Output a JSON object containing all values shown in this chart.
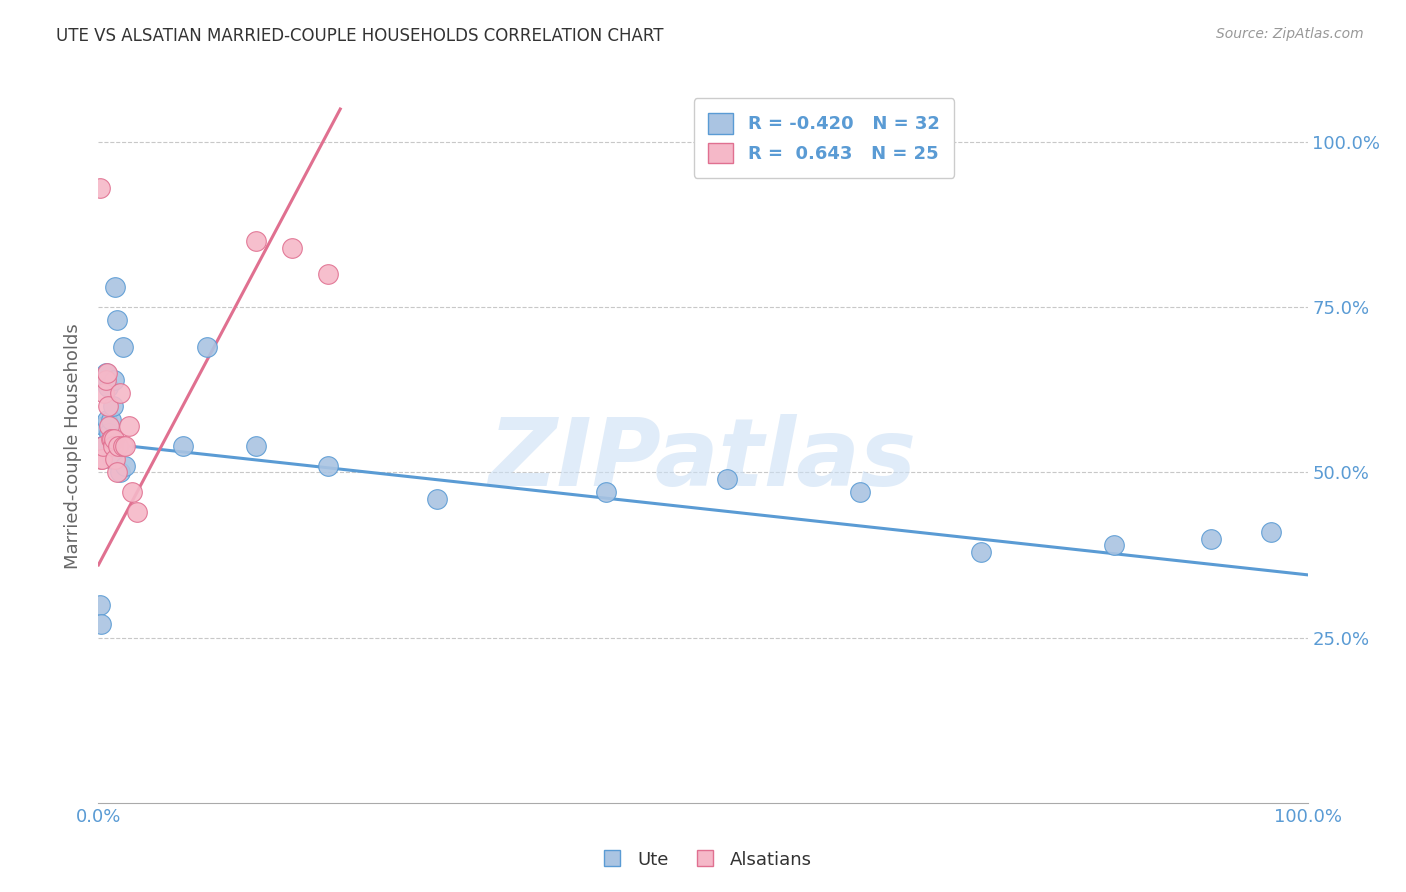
{
  "title": "UTE VS ALSATIAN MARRIED-COUPLE HOUSEHOLDS CORRELATION CHART",
  "source": "Source: ZipAtlas.com",
  "ylabel": "Married-couple Households",
  "watermark": "ZIPatlas",
  "ute_R": "-0.420",
  "ute_N": "32",
  "alsatian_R": "0.643",
  "alsatian_N": "25",
  "ute_color": "#aac4e2",
  "ute_line_color": "#5a9bd4",
  "alsatian_color": "#f5b8c8",
  "alsatian_line_color": "#e07090",
  "ute_x": [
    0.001,
    0.002,
    0.003,
    0.003,
    0.004,
    0.005,
    0.006,
    0.007,
    0.008,
    0.009,
    0.01,
    0.011,
    0.012,
    0.013,
    0.014,
    0.015,
    0.016,
    0.018,
    0.02,
    0.022,
    0.07,
    0.09,
    0.13,
    0.19,
    0.28,
    0.42,
    0.52,
    0.63,
    0.73,
    0.84,
    0.92,
    0.97
  ],
  "ute_y": [
    0.3,
    0.27,
    0.54,
    0.64,
    0.54,
    0.57,
    0.65,
    0.58,
    0.63,
    0.56,
    0.58,
    0.52,
    0.6,
    0.64,
    0.78,
    0.73,
    0.54,
    0.5,
    0.69,
    0.51,
    0.54,
    0.69,
    0.54,
    0.51,
    0.46,
    0.47,
    0.49,
    0.47,
    0.38,
    0.39,
    0.4,
    0.41
  ],
  "alsatian_x": [
    0.001,
    0.002,
    0.003,
    0.004,
    0.005,
    0.006,
    0.007,
    0.008,
    0.009,
    0.01,
    0.011,
    0.012,
    0.013,
    0.014,
    0.015,
    0.016,
    0.018,
    0.02,
    0.022,
    0.025,
    0.028,
    0.032,
    0.13,
    0.16,
    0.19
  ],
  "alsatian_y": [
    0.93,
    0.52,
    0.52,
    0.54,
    0.62,
    0.64,
    0.65,
    0.6,
    0.57,
    0.55,
    0.55,
    0.54,
    0.55,
    0.52,
    0.5,
    0.54,
    0.62,
    0.54,
    0.54,
    0.57,
    0.47,
    0.44,
    0.85,
    0.84,
    0.8
  ],
  "xlim": [
    0.0,
    1.0
  ],
  "ylim": [
    0.0,
    1.08
  ],
  "ute_trend_x": [
    0.0,
    1.0
  ],
  "ute_trend_y": [
    0.545,
    0.345
  ],
  "alsatian_trend_x": [
    0.0,
    0.2
  ],
  "alsatian_trend_y": [
    0.36,
    1.05
  ],
  "background_color": "#ffffff",
  "grid_color": "#c8c8c8",
  "tick_color": "#5a9bd4",
  "title_color": "#333333",
  "legend_border_color": "#cccccc"
}
